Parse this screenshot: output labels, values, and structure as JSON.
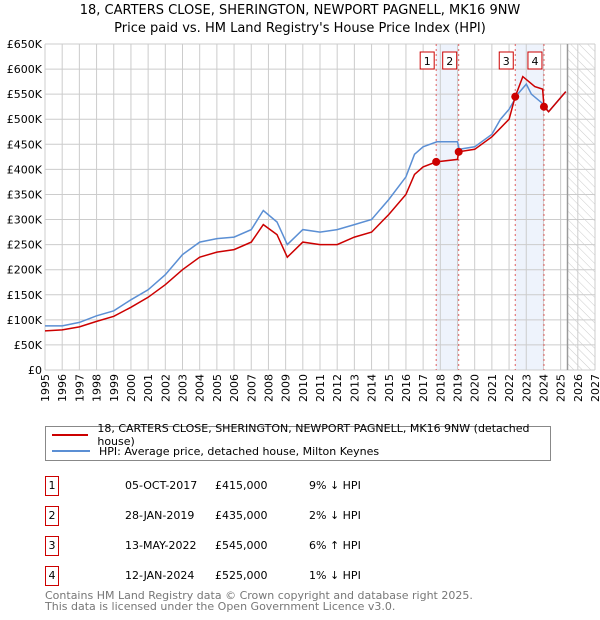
{
  "header": {
    "title": "18, CARTERS CLOSE, SHERINGTON, NEWPORT PAGNELL, MK16 9NW",
    "subtitle": "Price paid vs. HM Land Registry's House Price Index (HPI)"
  },
  "chart_data": {
    "type": "line",
    "title": "18, CARTERS CLOSE, SHERINGTON, NEWPORT PAGNELL, MK16 9NW",
    "xlim": [
      1995,
      2027
    ],
    "ylim": [
      0,
      650000
    ],
    "x_ticks": [
      "1995",
      "1996",
      "1997",
      "1998",
      "1999",
      "2000",
      "2001",
      "2002",
      "2003",
      "2004",
      "2005",
      "2006",
      "2007",
      "2008",
      "2009",
      "2010",
      "2011",
      "2012",
      "2013",
      "2014",
      "2015",
      "2016",
      "2017",
      "2018",
      "2019",
      "2020",
      "2021",
      "2022",
      "2023",
      "2024",
      "2025",
      "2026",
      "2027"
    ],
    "y_ticks": [
      "£0",
      "£50K",
      "£100K",
      "£150K",
      "£200K",
      "£250K",
      "£300K",
      "£350K",
      "£400K",
      "£450K",
      "£500K",
      "£550K",
      "£600K",
      "£650K"
    ],
    "grid": true,
    "forecast_start": 2025.4,
    "series": [
      {
        "name": "18, CARTERS CLOSE, SHERINGTON, NEWPORT PAGNELL, MK16 9NW (detached house)",
        "color": "#cc0000",
        "x": [
          1995,
          1996,
          1997,
          1998,
          1999,
          2000,
          2001,
          2002,
          2003,
          2004,
          2005,
          2006,
          2007,
          2007.7,
          2008.5,
          2009.1,
          2010,
          2011,
          2012,
          2013,
          2014,
          2015,
          2016,
          2016.5,
          2017,
          2017.76,
          2019.0,
          2019.07,
          2020,
          2021,
          2022,
          2022.36,
          2022.8,
          2023.5,
          2023.95,
          2024.03,
          2024.3,
          2025.3
        ],
        "y": [
          78000,
          80000,
          86000,
          97000,
          107000,
          125000,
          145000,
          170000,
          200000,
          225000,
          235000,
          240000,
          255000,
          290000,
          270000,
          225000,
          255000,
          250000,
          250000,
          265000,
          275000,
          310000,
          350000,
          390000,
          405000,
          415000,
          420000,
          435000,
          440000,
          465000,
          500000,
          545000,
          585000,
          565000,
          560000,
          525000,
          515000,
          555000
        ]
      },
      {
        "name": "HPI: Average price, detached house, Milton Keynes",
        "color": "#5b8fd4",
        "x": [
          1995,
          1996,
          1997,
          1998,
          1999,
          2000,
          2001,
          2002,
          2003,
          2004,
          2005,
          2006,
          2007,
          2007.7,
          2008.5,
          2009.1,
          2010,
          2011,
          2012,
          2013,
          2014,
          2015,
          2016,
          2016.5,
          2017,
          2017.8,
          2019,
          2019.1,
          2020,
          2021,
          2021.5,
          2022,
          2022.5,
          2023,
          2023.3,
          2024,
          2024.3,
          2025.3
        ],
        "y": [
          88000,
          88000,
          95000,
          108000,
          118000,
          140000,
          160000,
          190000,
          230000,
          255000,
          262000,
          265000,
          280000,
          318000,
          295000,
          250000,
          280000,
          275000,
          280000,
          290000,
          300000,
          340000,
          385000,
          430000,
          445000,
          455000,
          455000,
          440000,
          445000,
          470000,
          500000,
          520000,
          550000,
          570000,
          550000,
          530000,
          515000,
          555000
        ]
      }
    ],
    "sales": [
      {
        "n": "1",
        "x": 2017.76,
        "price": 415000,
        "date": "05-OCT-2017",
        "price_label": "£415,000",
        "hpi": "9% ↓ HPI"
      },
      {
        "n": "2",
        "x": 2019.07,
        "price": 435000,
        "date": "28-JAN-2019",
        "price_label": "£435,000",
        "hpi": "2% ↓ HPI"
      },
      {
        "n": "3",
        "x": 2022.36,
        "price": 545000,
        "date": "13-MAY-2022",
        "price_label": "£545,000",
        "hpi": "6% ↑ HPI"
      },
      {
        "n": "4",
        "x": 2024.03,
        "price": 525000,
        "date": "12-JAN-2024",
        "price_label": "£525,000",
        "hpi": "1% ↓ HPI"
      }
    ]
  },
  "legend": {
    "property": "18, CARTERS CLOSE, SHERINGTON, NEWPORT PAGNELL, MK16 9NW (detached house)",
    "hpi": "HPI: Average price, detached house, Milton Keynes"
  },
  "footer": {
    "line1": "Contains HM Land Registry data © Crown copyright and database right 2025.",
    "line2": "This data is licensed under the Open Government Licence v3.0."
  }
}
